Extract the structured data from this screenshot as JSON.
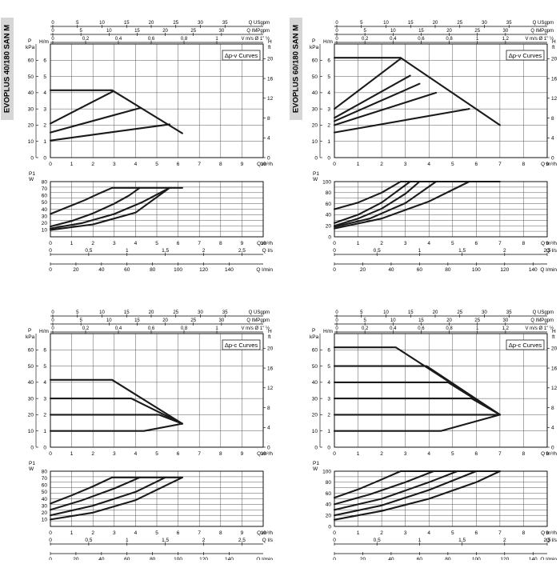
{
  "models": [
    {
      "label": "EVOPLUS 40/180 SAN M"
    },
    {
      "label": "EVOPLUS 60/180 SAN M"
    }
  ],
  "common_labels": {
    "usgpm": "Q USgpm",
    "impgpm": "Q IMPgpm",
    "vel": "V m/s Ø 1\" ½",
    "p_unit_1": "P",
    "p_unit_2": "kPa",
    "h_left": "H/m",
    "h_right_1": "H",
    "h_right_2": "ft",
    "q_m3h": "Q m³/h",
    "p1_1": "P1",
    "p1_2": "W",
    "q_ls": "Q l/s",
    "q_lmin": "Q l/min"
  },
  "chart_data": [
    {
      "type": "line",
      "model": "EVOPLUS 40/180 SAN M",
      "legend": "Δp-v Curves",
      "usgpm_ticks": [
        "0",
        "5",
        "10",
        "15",
        "20",
        "25",
        "30",
        "35"
      ],
      "impgpm_ticks": [
        "0",
        "5",
        "10",
        "15",
        "20",
        "25",
        "30"
      ],
      "vel_ticks": [
        "0",
        "0,2",
        "0,4",
        "0,6",
        "0,8",
        "1"
      ],
      "head": {
        "xlim": [
          0,
          10
        ],
        "ylim": [
          0,
          7
        ],
        "x_ticks": [
          "0",
          "1",
          "2",
          "3",
          "4",
          "5",
          "6",
          "7",
          "8",
          "9",
          "10"
        ],
        "kpa_ticks": [
          "0",
          "10",
          "20",
          "30",
          "40",
          "50",
          "60"
        ],
        "h_ticks": [
          "0",
          "1",
          "2",
          "3",
          "4",
          "5",
          "6"
        ],
        "ft_ticks": [
          "0",
          "4",
          "8",
          "12",
          "16",
          "20"
        ],
        "series": [
          {
            "x": [
              0,
              2.9,
              6.2
            ],
            "y": [
              4.15,
              4.15,
              1.5
            ]
          },
          {
            "x": [
              0,
              2.9
            ],
            "y": [
              2.1,
              4.05
            ]
          },
          {
            "x": [
              0,
              4.2
            ],
            "y": [
              1.55,
              3.05
            ]
          },
          {
            "x": [
              0,
              5.6
            ],
            "y": [
              1.05,
              2.05
            ]
          }
        ]
      },
      "power": {
        "xlim": [
          0,
          10
        ],
        "ylim": [
          0,
          80
        ],
        "y_ticks": [
          "10",
          "20",
          "30",
          "40",
          "50",
          "60",
          "70",
          "80"
        ],
        "ls_ticks": [
          "0",
          "0,5",
          "1",
          "1,5",
          "2",
          "2,5"
        ],
        "lmin_ticks": [
          "0",
          "20",
          "40",
          "60",
          "80",
          "100",
          "120",
          "140"
        ],
        "series": [
          {
            "x": [
              0,
              0.8,
              1.6,
              2.3,
              2.9
            ],
            "y": [
              33,
              43,
              53,
              63,
              71
            ]
          },
          {
            "x": [
              0,
              1,
              2,
              3,
              3.7,
              4.2
            ],
            "y": [
              15,
              23,
              34,
              48,
              60,
              71
            ]
          },
          {
            "x": [
              0,
              1.5,
              3,
              4.3,
              5.6
            ],
            "y": [
              12,
              20,
              33,
              50,
              71
            ]
          },
          {
            "x": [
              0,
              2,
              4,
              5.6
            ],
            "y": [
              10,
              18,
              35,
              71
            ]
          },
          {
            "x": [
              2.9,
              6.2
            ],
            "y": [
              71,
              71
            ]
          }
        ]
      }
    },
    {
      "type": "line",
      "model": "EVOPLUS 60/180 SAN M",
      "legend": "Δp-v Curves",
      "usgpm_ticks": [
        "0",
        "5",
        "10",
        "15",
        "20",
        "25",
        "30",
        "35"
      ],
      "impgpm_ticks": [
        "0",
        "5",
        "10",
        "15",
        "20",
        "25",
        "30"
      ],
      "vel_ticks": [
        "0",
        "0,2",
        "0,4",
        "0,6",
        "0,8",
        "1",
        "1,2"
      ],
      "head": {
        "xlim": [
          0,
          9
        ],
        "ylim": [
          0,
          7
        ],
        "x_ticks": [
          "0",
          "1",
          "2",
          "3",
          "4",
          "5",
          "6",
          "7",
          "8",
          "9"
        ],
        "kpa_ticks": [
          "0",
          "10",
          "20",
          "30",
          "40",
          "50",
          "60"
        ],
        "h_ticks": [
          "0",
          "1",
          "2",
          "3",
          "4",
          "5",
          "6"
        ],
        "ft_ticks": [
          "0",
          "4",
          "8",
          "12",
          "16",
          "20"
        ],
        "series": [
          {
            "x": [
              0,
              2.8,
              7.0
            ],
            "y": [
              6.15,
              6.15,
              2.0
            ]
          },
          {
            "x": [
              0,
              2.8
            ],
            "y": [
              3.0,
              6.1
            ]
          },
          {
            "x": [
              0,
              3.2
            ],
            "y": [
              2.45,
              5.05
            ]
          },
          {
            "x": [
              0,
              3.6
            ],
            "y": [
              2.25,
              4.55
            ]
          },
          {
            "x": [
              0,
              4.3
            ],
            "y": [
              2.0,
              4.0
            ]
          },
          {
            "x": [
              0,
              5.7
            ],
            "y": [
              1.55,
              3.0
            ]
          }
        ]
      },
      "power": {
        "xlim": [
          0,
          9
        ],
        "ylim": [
          0,
          100
        ],
        "y_ticks": [
          "0",
          "20",
          "40",
          "60",
          "80",
          "100"
        ],
        "ls_ticks": [
          "0",
          "0,5",
          "1",
          "1,5",
          "2",
          "2,5"
        ],
        "lmin_ticks": [
          "0",
          "20",
          "40",
          "60",
          "80",
          "100",
          "120",
          "140"
        ],
        "series": [
          {
            "x": [
              0,
              1,
              2,
              2.8
            ],
            "y": [
              50,
              62,
              80,
              100
            ]
          },
          {
            "x": [
              0,
              1,
              2,
              3.2
            ],
            "y": [
              25,
              40,
              62,
              100
            ]
          },
          {
            "x": [
              0,
              1,
              2,
              3,
              3.6
            ],
            "y": [
              20,
              33,
              51,
              78,
              100
            ]
          },
          {
            "x": [
              0,
              1.5,
              3,
              4.3
            ],
            "y": [
              18,
              33,
              61,
              100
            ]
          },
          {
            "x": [
              0,
              2,
              4,
              5.7
            ],
            "y": [
              15,
              33,
              64,
              100
            ]
          },
          {
            "x": [
              2.8,
              7.0
            ],
            "y": [
              100,
              100
            ]
          }
        ]
      }
    },
    {
      "type": "line",
      "model": "EVOPLUS 40/180 SAN M",
      "legend": "Δp-c Curves",
      "usgpm_ticks": [
        "0",
        "5",
        "10",
        "15",
        "20",
        "25",
        "30",
        "35"
      ],
      "impgpm_ticks": [
        "0",
        "5",
        "10",
        "15",
        "20",
        "25",
        "30"
      ],
      "vel_ticks": [
        "0",
        "0,2",
        "0,4",
        "0,6",
        "0,8",
        "1"
      ],
      "head": {
        "xlim": [
          0,
          10
        ],
        "ylim": [
          0,
          7
        ],
        "x_ticks": [
          "0",
          "1",
          "2",
          "3",
          "4",
          "5",
          "6",
          "7",
          "8",
          "9",
          "10"
        ],
        "kpa_ticks": [
          "0",
          "10",
          "20",
          "30",
          "40",
          "50",
          "60"
        ],
        "h_ticks": [
          "0",
          "1",
          "2",
          "3",
          "4",
          "5",
          "6"
        ],
        "ft_ticks": [
          "0",
          "4",
          "8",
          "12",
          "16",
          "20"
        ],
        "series": [
          {
            "x": [
              0,
              2.9,
              6.2
            ],
            "y": [
              4.15,
              4.15,
              1.45
            ]
          },
          {
            "x": [
              0,
              3.8,
              6.2
            ],
            "y": [
              3.0,
              3.0,
              1.45
            ]
          },
          {
            "x": [
              0,
              5.1,
              6.2
            ],
            "y": [
              2.0,
              2.0,
              1.45
            ]
          },
          {
            "x": [
              0,
              4.4,
              6.2
            ],
            "y": [
              1.0,
              1.0,
              1.45
            ]
          }
        ]
      },
      "power": {
        "xlim": [
          0,
          10
        ],
        "ylim": [
          0,
          80
        ],
        "y_ticks": [
          "10",
          "20",
          "30",
          "40",
          "50",
          "60",
          "70",
          "80"
        ],
        "ls_ticks": [
          "0",
          "0,5",
          "1",
          "1,5",
          "2",
          "2,5"
        ],
        "lmin_ticks": [
          "0",
          "20",
          "40",
          "60",
          "80",
          "100",
          "120",
          "140"
        ],
        "series": [
          {
            "x": [
              0,
              1,
              2,
              2.9
            ],
            "y": [
              33,
              45,
              58,
              71
            ]
          },
          {
            "x": [
              0,
              1.5,
              3,
              4.2
            ],
            "y": [
              24,
              38,
              55,
              71
            ]
          },
          {
            "x": [
              0,
              2,
              4,
              5.4
            ],
            "y": [
              16,
              30,
              50,
              71
            ]
          },
          {
            "x": [
              0,
              2,
              4,
              6.2
            ],
            "y": [
              10,
              20,
              38,
              71
            ]
          },
          {
            "x": [
              2.9,
              6.2
            ],
            "y": [
              71,
              71
            ]
          }
        ]
      }
    },
    {
      "type": "line",
      "model": "EVOPLUS 60/180 SAN M",
      "legend": "Δp-c Curves",
      "usgpm_ticks": [
        "0",
        "5",
        "10",
        "15",
        "20",
        "25",
        "30",
        "35"
      ],
      "impgpm_ticks": [
        "0",
        "5",
        "10",
        "15",
        "20",
        "25",
        "30"
      ],
      "vel_ticks": [
        "0",
        "0,2",
        "0,4",
        "0,6",
        "0,8",
        "1",
        "1,2"
      ],
      "head": {
        "xlim": [
          0,
          9
        ],
        "ylim": [
          0,
          7
        ],
        "x_ticks": [
          "0",
          "1",
          "2",
          "3",
          "4",
          "5",
          "6",
          "7",
          "8",
          "9"
        ],
        "kpa_ticks": [
          "0",
          "10",
          "20",
          "30",
          "40",
          "50",
          "60"
        ],
        "h_ticks": [
          "0",
          "1",
          "2",
          "3",
          "4",
          "5",
          "6"
        ],
        "ft_ticks": [
          "0",
          "4",
          "8",
          "12",
          "16",
          "20"
        ],
        "series": [
          {
            "x": [
              0,
              2.6,
              7.0
            ],
            "y": [
              6.15,
              6.15,
              2.0
            ]
          },
          {
            "x": [
              0,
              3.9,
              7.0
            ],
            "y": [
              5.0,
              5.0,
              2.0
            ]
          },
          {
            "x": [
              0,
              4.8,
              7.0
            ],
            "y": [
              4.0,
              4.0,
              2.0
            ]
          },
          {
            "x": [
              0,
              5.8,
              7.0
            ],
            "y": [
              3.0,
              3.0,
              2.0
            ]
          },
          {
            "x": [
              0,
              7.0
            ],
            "y": [
              2.0,
              2.0
            ]
          },
          {
            "x": [
              0,
              4.5,
              7.0
            ],
            "y": [
              1.0,
              1.0,
              2.0
            ]
          }
        ]
      },
      "power": {
        "xlim": [
          0,
          9
        ],
        "ylim": [
          0,
          100
        ],
        "y_ticks": [
          "0",
          "20",
          "40",
          "60",
          "80",
          "100"
        ],
        "ls_ticks": [
          "0",
          "0,5",
          "1",
          "1,5",
          "2",
          "2,5"
        ],
        "lmin_ticks": [
          "0",
          "20",
          "40",
          "60",
          "80",
          "100",
          "120",
          "140"
        ],
        "series": [
          {
            "x": [
              0,
              1,
              2,
              2.8
            ],
            "y": [
              52,
              67,
              85,
              100
            ]
          },
          {
            "x": [
              0,
              1.5,
              3,
              4.2
            ],
            "y": [
              40,
              58,
              80,
              100
            ]
          },
          {
            "x": [
              0,
              2,
              4,
              5.2
            ],
            "y": [
              30,
              50,
              80,
              100
            ]
          },
          {
            "x": [
              0,
              2,
              4,
              6.0
            ],
            "y": [
              20,
              38,
              66,
              100
            ]
          },
          {
            "x": [
              0,
              2,
              4,
              6,
              7.0
            ],
            "y": [
              12,
              28,
              50,
              80,
              100
            ]
          },
          {
            "x": [
              2.8,
              7.0
            ],
            "y": [
              100,
              100
            ]
          }
        ]
      }
    }
  ]
}
